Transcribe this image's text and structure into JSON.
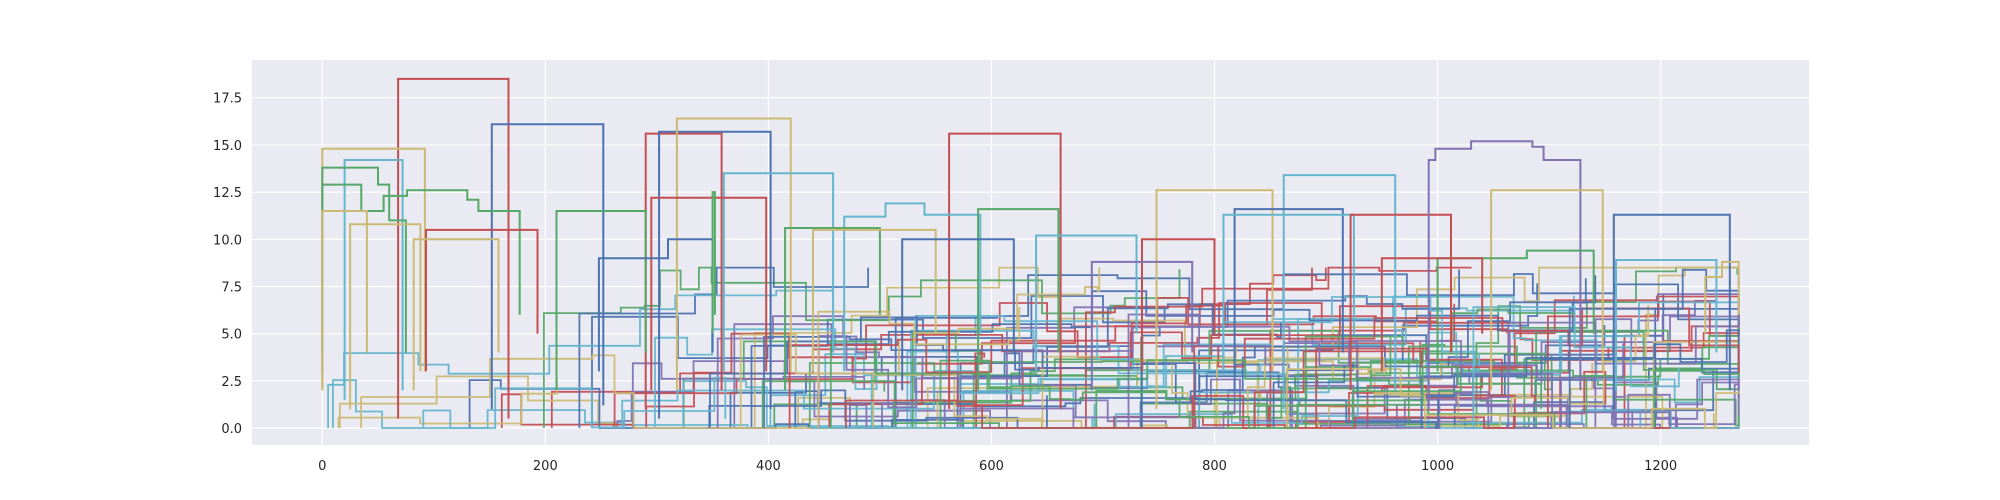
{
  "chart_data": {
    "type": "line",
    "style": "step lines (seaborn darkgrid)",
    "title": "",
    "xlabel": "",
    "ylabel": "",
    "xlim": [
      -63,
      1333
    ],
    "ylim": [
      -0.9,
      19.5
    ],
    "x_ticks": [
      0,
      200,
      400,
      600,
      800,
      1000,
      1200
    ],
    "x_tick_labels": [
      "0",
      "200",
      "400",
      "600",
      "800",
      "1000",
      "1200"
    ],
    "y_ticks": [
      0,
      2.5,
      5,
      7.5,
      10,
      12.5,
      15,
      17.5
    ],
    "y_tick_labels": [
      "0.0",
      "2.5",
      "5.0",
      "7.5",
      "10.0",
      "12.5",
      "15.0",
      "17.5"
    ],
    "grid": true,
    "legend": "none",
    "background_color": "#eaeaf2",
    "grid_color": "#ffffff",
    "palette": [
      "#4c72b0",
      "#55a868",
      "#c44e52",
      "#8172b2",
      "#ccb974",
      "#64b5cd"
    ],
    "series": [
      {
        "color": "#c44e52",
        "x": [
          68,
          68,
          167,
          167
        ],
        "y": [
          0.5,
          18.5,
          18.5,
          0.5
        ]
      },
      {
        "color": "#4c72b0",
        "x": [
          152,
          152,
          252,
          252
        ],
        "y": [
          1.0,
          16.1,
          16.1,
          1.2
        ]
      },
      {
        "color": "#ccb974",
        "x": [
          0,
          0,
          92,
          92
        ],
        "y": [
          2.0,
          14.8,
          14.8,
          3.0
        ]
      },
      {
        "color": "#64b5cd",
        "x": [
          20,
          20,
          72,
          72
        ],
        "y": [
          1.5,
          14.2,
          14.2,
          2.0
        ]
      },
      {
        "color": "#55a868",
        "x": [
          0,
          0,
          50,
          50,
          60,
          60,
          75,
          75
        ],
        "y": [
          3.0,
          13.8,
          13.8,
          12.9,
          12.9,
          11.0,
          11.0,
          4.0
        ]
      },
      {
        "color": "#55a868",
        "x": [
          0,
          0,
          35,
          35,
          55,
          55,
          76,
          76,
          130,
          130,
          140,
          140,
          177,
          177
        ],
        "y": [
          4.0,
          12.9,
          12.9,
          11.5,
          11.5,
          12.3,
          12.3,
          12.6,
          12.6,
          12.1,
          12.1,
          11.5,
          11.5,
          6.0
        ]
      },
      {
        "color": "#ccb974",
        "x": [
          0,
          0,
          40,
          40
        ],
        "y": [
          2.0,
          11.5,
          11.5,
          4.0
        ]
      },
      {
        "color": "#ccb974",
        "x": [
          25,
          25,
          88,
          88
        ],
        "y": [
          1.0,
          10.8,
          10.8,
          3.0
        ]
      },
      {
        "color": "#c44e52",
        "x": [
          93,
          93,
          193,
          193
        ],
        "y": [
          3.0,
          10.5,
          10.5,
          5.0
        ]
      },
      {
        "color": "#ccb974",
        "x": [
          82,
          82,
          158,
          158
        ],
        "y": [
          2.0,
          10.0,
          10.0,
          4.0
        ]
      },
      {
        "color": "#c44e52",
        "x": [
          290,
          290,
          358,
          358
        ],
        "y": [
          1.0,
          15.6,
          15.6,
          2.0
        ]
      },
      {
        "color": "#4c72b0",
        "x": [
          302,
          302,
          402,
          402
        ],
        "y": [
          0.5,
          15.7,
          15.7,
          1.0
        ]
      },
      {
        "color": "#ccb974",
        "x": [
          318,
          318,
          420,
          420
        ],
        "y": [
          2.0,
          16.4,
          16.4,
          3.0
        ]
      },
      {
        "color": "#64b5cd",
        "x": [
          360,
          360,
          458,
          458
        ],
        "y": [
          3.0,
          13.5,
          13.5,
          4.0
        ]
      },
      {
        "color": "#c44e52",
        "x": [
          295,
          295,
          398,
          398
        ],
        "y": [
          2.0,
          12.2,
          12.2,
          3.0
        ]
      },
      {
        "color": "#55a868",
        "x": [
          210,
          210,
          290,
          290
        ],
        "y": [
          2.0,
          11.5,
          11.5,
          4.0
        ]
      },
      {
        "color": "#4c72b0",
        "x": [
          248,
          248,
          310,
          310,
          350,
          350
        ],
        "y": [
          3.0,
          9.0,
          9.0,
          10.0,
          10.0,
          4.0
        ]
      },
      {
        "color": "#55a868",
        "x": [
          350,
          350,
          352,
          352
        ],
        "y": [
          5.0,
          12.5,
          12.5,
          6.0
        ]
      },
      {
        "color": "#c44e52",
        "x": [
          562,
          562,
          662,
          662
        ],
        "y": [
          1.0,
          15.6,
          15.6,
          1.0
        ]
      },
      {
        "color": "#64b5cd",
        "x": [
          468,
          468,
          505,
          505,
          540,
          540,
          590,
          590
        ],
        "y": [
          3.0,
          11.2,
          11.2,
          11.9,
          11.9,
          11.3,
          11.3,
          5.0
        ]
      },
      {
        "color": "#55a868",
        "x": [
          588,
          588,
          660,
          660
        ],
        "y": [
          2.0,
          11.6,
          11.6,
          4.0
        ]
      },
      {
        "color": "#55a868",
        "x": [
          415,
          415,
          500,
          500
        ],
        "y": [
          2.0,
          10.6,
          10.6,
          6.0
        ]
      },
      {
        "color": "#ccb974",
        "x": [
          440,
          440,
          550,
          550
        ],
        "y": [
          3.0,
          10.5,
          10.5,
          5.0
        ]
      },
      {
        "color": "#4c72b0",
        "x": [
          520,
          520,
          620,
          620
        ],
        "y": [
          2.0,
          10.0,
          10.0,
          4.0
        ]
      },
      {
        "color": "#ccb974",
        "x": [
          748,
          748,
          852,
          852
        ],
        "y": [
          1.0,
          12.6,
          12.6,
          3.0
        ]
      },
      {
        "color": "#64b5cd",
        "x": [
          862,
          862,
          962,
          962
        ],
        "y": [
          1.0,
          13.4,
          13.4,
          2.0
        ]
      },
      {
        "color": "#4c72b0",
        "x": [
          818,
          818,
          915,
          915
        ],
        "y": [
          2.0,
          11.6,
          11.6,
          4.0
        ]
      },
      {
        "color": "#64b5cd",
        "x": [
          808,
          808,
          925,
          925
        ],
        "y": [
          3.0,
          11.3,
          11.3,
          5.0
        ]
      },
      {
        "color": "#c44e52",
        "x": [
          922,
          922,
          1012,
          1012
        ],
        "y": [
          2.0,
          11.3,
          11.3,
          4.0
        ]
      },
      {
        "color": "#c44e52",
        "x": [
          735,
          735,
          800,
          800
        ],
        "y": [
          3.0,
          10.0,
          10.0,
          5.0
        ]
      },
      {
        "color": "#8172b2",
        "x": [
          992,
          992,
          998,
          998,
          1030,
          1030,
          1085,
          1085,
          1095,
          1095,
          1128,
          1128
        ],
        "y": [
          1.0,
          14.2,
          14.2,
          14.8,
          14.8,
          15.2,
          15.2,
          14.9,
          14.9,
          14.2,
          14.2,
          2.0
        ]
      },
      {
        "color": "#ccb974",
        "x": [
          1048,
          1048,
          1148,
          1148
        ],
        "y": [
          2.0,
          12.6,
          12.6,
          3.0
        ]
      },
      {
        "color": "#4c72b0",
        "x": [
          1158,
          1158,
          1262,
          1262
        ],
        "y": [
          1.0,
          11.3,
          11.3,
          2.0
        ]
      },
      {
        "color": "#55a868",
        "x": [
          1000,
          1000,
          1080,
          1080,
          1140,
          1140
        ],
        "y": [
          3.0,
          9.0,
          9.0,
          9.4,
          9.4,
          5.0
        ]
      },
      {
        "color": "#64b5cd",
        "x": [
          1160,
          1160,
          1250,
          1250
        ],
        "y": [
          2.0,
          8.9,
          8.9,
          4.0
        ]
      },
      {
        "color": "#ccb974",
        "x": [
          1240,
          1240,
          1255,
          1255,
          1270,
          1270
        ],
        "y": [
          5.0,
          8.0,
          8.0,
          8.8,
          8.8,
          6.0
        ]
      },
      {
        "color": "#c44e52",
        "x": [
          950,
          950,
          1040,
          1040
        ],
        "y": [
          3.0,
          9.0,
          9.0,
          5.0
        ]
      },
      {
        "color": "#64b5cd",
        "x": [
          640,
          640,
          730,
          730
        ],
        "y": [
          3.0,
          10.2,
          10.2,
          5.0
        ]
      },
      {
        "color": "#8172b2",
        "x": [
          690,
          690,
          780,
          780
        ],
        "y": [
          2.0,
          8.8,
          8.8,
          4.0
        ]
      }
    ]
  }
}
